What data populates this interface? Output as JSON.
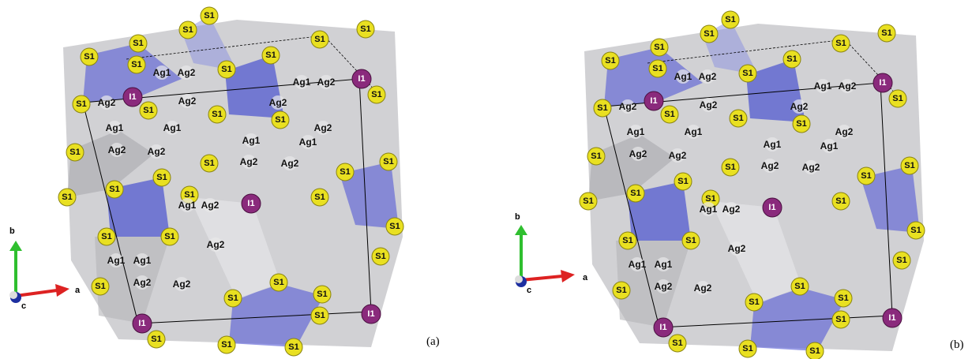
{
  "panels": [
    {
      "label": "(a)",
      "axes": {
        "a": "a",
        "b": "b",
        "c": "c"
      },
      "atoms": [
        "S1",
        "S1",
        "S1",
        "S1",
        "S1",
        "S1",
        "S1",
        "S1",
        "S1",
        "I1",
        "I1",
        "S1",
        "S1",
        "S1",
        "S1",
        "S1",
        "S1",
        "S1",
        "S1",
        "S1",
        "S1",
        "S1",
        "S1",
        "S1",
        "I1",
        "S1",
        "S1",
        "S1",
        "S1",
        "S1",
        "S1",
        "S1",
        "S1",
        "S1",
        "I1",
        "S1",
        "I1",
        "S1",
        "S1",
        "S1",
        "Ag1",
        "Ag2",
        "Ag1",
        "Ag2",
        "Ag2",
        "Ag2",
        "Ag2",
        "Ag1",
        "Ag1",
        "Ag2",
        "Ag2",
        "Ag2",
        "Ag1",
        "Ag1",
        "Ag2",
        "Ag2",
        "Ag1",
        "Ag2",
        "Ag1",
        "Ag1",
        "Ag2",
        "Ag2",
        "Ag2"
      ]
    },
    {
      "label": "(b)",
      "axes": {
        "a": "a",
        "b": "b",
        "c": "c"
      },
      "atoms": [
        "S1",
        "S1",
        "S1",
        "S1",
        "S1",
        "S1",
        "S1",
        "S1",
        "S1",
        "I1",
        "I1",
        "S1",
        "S1",
        "S1",
        "S1",
        "S1",
        "S1",
        "S1",
        "S1",
        "S1",
        "S1",
        "S1",
        "S1",
        "S1",
        "I1",
        "S1",
        "S1",
        "S1",
        "S1",
        "S1",
        "S1",
        "S1",
        "S1",
        "S1",
        "I1",
        "S1",
        "I1",
        "S1",
        "S1",
        "S1",
        "Ag1",
        "Ag2",
        "Ag1",
        "Ag2",
        "Ag2",
        "Ag2",
        "Ag2",
        "Ag1",
        "Ag1",
        "Ag2",
        "Ag2",
        "Ag2",
        "Ag1",
        "Ag1",
        "Ag2",
        "Ag2",
        "Ag1",
        "Ag2",
        "Ag1",
        "Ag1",
        "Ag2",
        "Ag2",
        "Ag2"
      ]
    }
  ]
}
